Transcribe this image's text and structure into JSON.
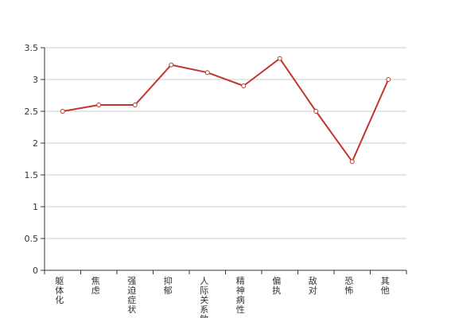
{
  "chart_data": {
    "type": "line",
    "categories": [
      "躯体化",
      "焦虑",
      "强迫症状",
      "抑郁",
      "人际关系敏感",
      "精神病性",
      "偏执",
      "敌对",
      "恐怖",
      "其他"
    ],
    "series": [
      {
        "values": [
          2.5,
          2.6,
          2.6,
          3.23,
          3.11,
          2.9,
          3.33,
          2.5,
          1.71,
          3.0
        ]
      }
    ],
    "y_ticks": [
      "0",
      "0.5",
      "1",
      "1.5",
      "2",
      "2.5",
      "3",
      "3.5"
    ],
    "ylim": [
      0,
      3.5
    ],
    "grid": true,
    "line_color": "#c23531",
    "grid_color": "#cccccc",
    "axis_color": "#333333"
  }
}
